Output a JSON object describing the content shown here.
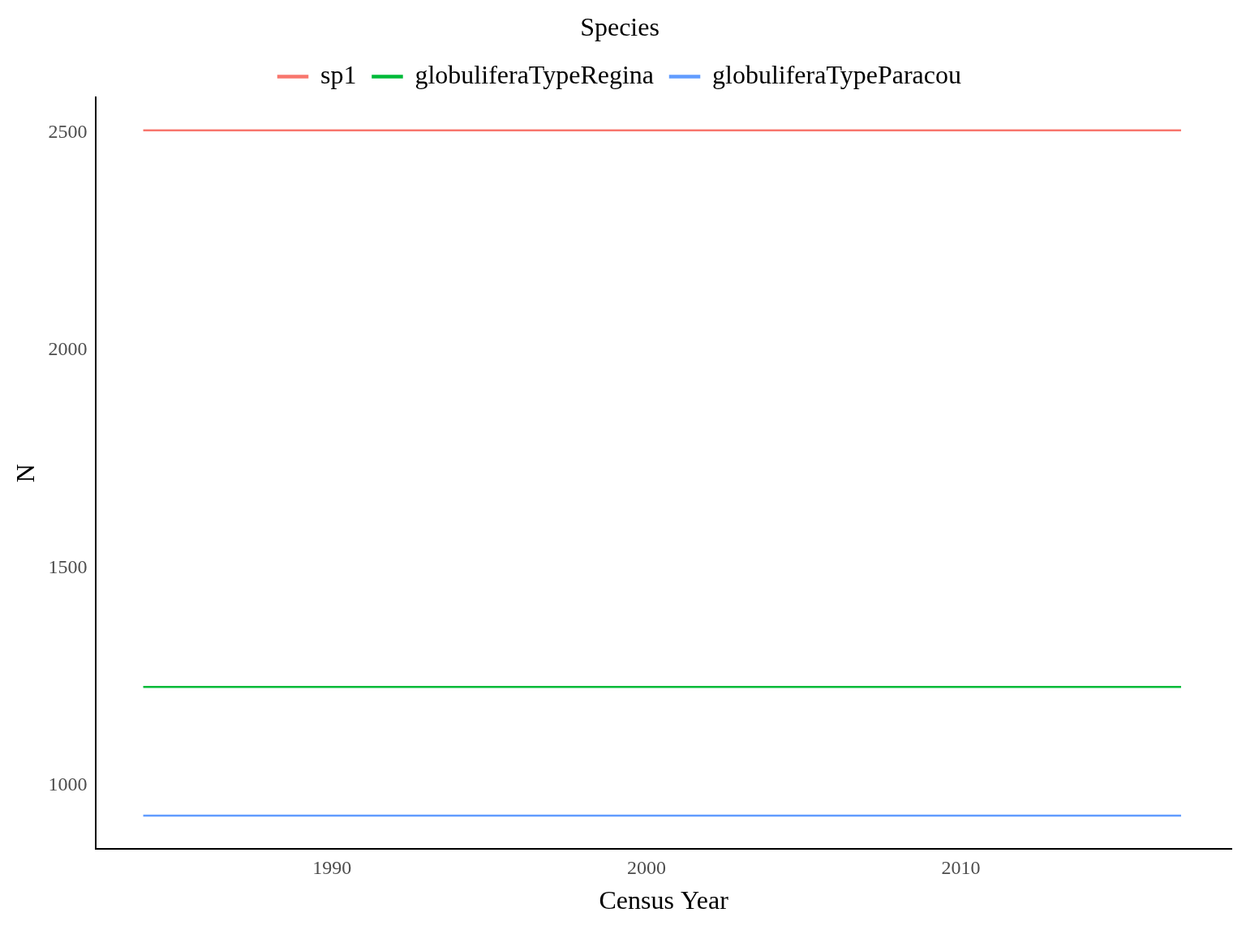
{
  "chart_data": {
    "type": "line",
    "x_label": "Census Year",
    "y_label": "N",
    "legend_title": "Species",
    "legend": "top",
    "grid": false,
    "x": [
      1984,
      2017
    ],
    "series": [
      {
        "name": "sp1",
        "color": "#F8766D",
        "values": [
          2506,
          2506
        ]
      },
      {
        "name": "globuliferaTypeRegina",
        "color": "#00BA38",
        "values": [
          1226,
          1226
        ]
      },
      {
        "name": "globuliferaTypeParacou",
        "color": "#619CFF",
        "values": [
          930,
          930
        ]
      }
    ],
    "xlim": [
      1982.5,
      2018.6
    ],
    "xticks": [
      1990,
      2000,
      2010
    ],
    "ylim": [
      854,
      2581
    ],
    "yticks": [
      1000,
      1500,
      2000,
      2500
    ]
  }
}
